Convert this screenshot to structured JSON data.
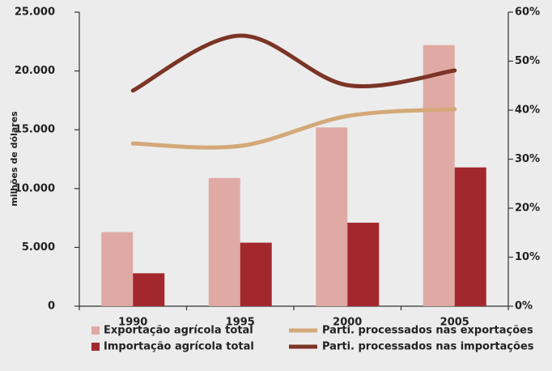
{
  "chart_data": {
    "type": "bar-line",
    "y_label": "milhões de dólares",
    "categories": [
      "1990",
      "1995",
      "2000",
      "2005"
    ],
    "series": [
      {
        "name": "Exportação agrícola total",
        "type": "bar",
        "color": "#e0aaa4",
        "values": [
          6300,
          10900,
          15200,
          22200
        ]
      },
      {
        "name": "Importação agrícola total",
        "type": "bar",
        "color": "#a3282d",
        "values": [
          2800,
          5400,
          7100,
          11800
        ]
      },
      {
        "name": "Parti. processados nas exportações",
        "type": "line",
        "axis": "y2",
        "color": "#d4a878",
        "values": [
          33.2,
          32.7,
          38.8,
          40.2
        ]
      },
      {
        "name": "Parti. processados nas importações",
        "type": "line",
        "axis": "y2",
        "color": "#7b3426",
        "values": [
          44,
          55.2,
          45.1,
          48.1
        ]
      }
    ],
    "ylim": [
      0,
      25000
    ],
    "yticks": [
      0,
      {
        "value": 5000,
        "label": "5.000"
      },
      {
        "value": 10000,
        "label": "10.000"
      },
      {
        "value": 15000,
        "label": "15.000"
      },
      {
        "value": 20000,
        "label": "20.000"
      },
      {
        "value": 25000,
        "label": "25.000"
      }
    ],
    "y2lim": [
      0,
      60
    ],
    "y2ticks": [
      {
        "value": 0,
        "label": "0%"
      },
      {
        "value": 10,
        "label": "10%"
      },
      {
        "value": 20,
        "label": "20%"
      },
      {
        "value": 30,
        "label": "30%"
      },
      {
        "value": 40,
        "label": "40%"
      },
      {
        "value": 50,
        "label": "50%"
      },
      {
        "value": 60,
        "label": "60%"
      }
    ]
  }
}
